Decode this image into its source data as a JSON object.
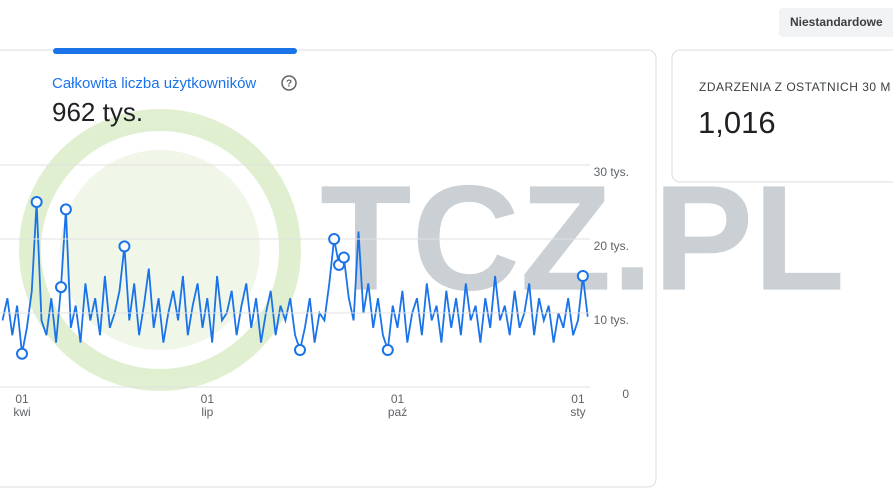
{
  "button": "Niestandardowe",
  "users_card": {
    "label": "Całkowita liczba użytkowników",
    "help": "?",
    "value": "962 tys."
  },
  "events_card": {
    "label": "ZDARZENIA Z OSTATNICH 30 M",
    "value": "1,016"
  },
  "watermark": "TCZ.PL",
  "chart_data": {
    "type": "line",
    "categories": [
      null,
      null,
      null,
      null,
      "01\nkwi",
      null,
      null,
      null,
      null,
      null,
      null,
      null,
      null,
      null,
      null,
      null,
      null,
      null,
      null,
      null,
      null,
      null,
      null,
      null,
      null,
      null,
      null,
      null,
      null,
      null,
      null,
      null,
      null,
      null,
      null,
      null,
      null,
      null,
      null,
      null,
      null,
      null,
      "01\nlip",
      null,
      null,
      null,
      null,
      null,
      null,
      null,
      null,
      null,
      null,
      null,
      null,
      null,
      null,
      null,
      null,
      null,
      null,
      null,
      null,
      null,
      null,
      null,
      null,
      null,
      null,
      null,
      null,
      null,
      null,
      null,
      null,
      null,
      null,
      null,
      null,
      null,
      null,
      "01\npaź",
      null,
      null,
      null,
      null,
      null,
      null,
      null,
      null,
      null,
      null,
      null,
      null,
      null,
      null,
      null,
      null,
      null,
      null,
      null,
      null,
      null,
      null,
      null,
      null,
      null,
      null,
      null,
      null,
      null,
      null,
      null,
      null,
      null,
      null,
      null,
      null,
      "01\nsty",
      null,
      null
    ],
    "series": [
      {
        "color": "#1a73e8",
        "values": [
          9000,
          12000,
          7000,
          11000,
          4500,
          8000,
          13000,
          25000,
          9000,
          7000,
          12000,
          6000,
          13500,
          24000,
          8000,
          11000,
          6000,
          14000,
          9000,
          12000,
          7000,
          15000,
          8000,
          10000,
          13000,
          19000,
          9000,
          14000,
          7000,
          11000,
          16000,
          8000,
          12000,
          6000,
          10000,
          13000,
          9000,
          15000,
          7000,
          11000,
          14000,
          8000,
          12000,
          6000,
          15000,
          9000,
          10000,
          13000,
          7000,
          11000,
          14000,
          8000,
          12000,
          6000,
          10000,
          13000,
          7000,
          11000,
          9000,
          12000,
          7000,
          5000,
          8000,
          12000,
          6000,
          10000,
          9000,
          14000,
          20000,
          16500,
          17500,
          12000,
          9000,
          21000,
          10000,
          14000,
          8000,
          12000,
          7000,
          5000,
          11000,
          8000,
          13000,
          6000,
          10000,
          12000,
          7000,
          14000,
          9000,
          11000,
          6000,
          13000,
          8000,
          12000,
          7000,
          14000,
          9000,
          11000,
          6000,
          12000,
          8000,
          15000,
          9000,
          11000,
          7000,
          13000,
          8000,
          10000,
          14000,
          7000,
          12000,
          9000,
          11000,
          6000,
          10000,
          8000,
          12000,
          7000,
          9000,
          15000,
          9500
        ]
      },
      {
        "color": "#1a73e8",
        "marker": "circle",
        "values": [
          null,
          null,
          null,
          null,
          4500,
          null,
          null,
          25000,
          null,
          null,
          null,
          null,
          13500,
          24000,
          null,
          null,
          null,
          null,
          null,
          null,
          null,
          null,
          null,
          null,
          null,
          19000,
          null,
          null,
          null,
          null,
          null,
          null,
          null,
          null,
          null,
          null,
          null,
          null,
          null,
          null,
          null,
          null,
          null,
          null,
          null,
          null,
          null,
          null,
          null,
          null,
          null,
          null,
          null,
          null,
          null,
          null,
          null,
          null,
          null,
          null,
          null,
          5000,
          null,
          null,
          null,
          null,
          null,
          null,
          20000,
          16500,
          17500,
          null,
          null,
          null,
          null,
          null,
          null,
          null,
          null,
          5000,
          null,
          null,
          null,
          null,
          null,
          null,
          null,
          null,
          null,
          null,
          null,
          null,
          null,
          null,
          null,
          null,
          null,
          null,
          null,
          null,
          null,
          null,
          null,
          null,
          null,
          null,
          null,
          null,
          null,
          null,
          null,
          null,
          null,
          null,
          null,
          null,
          null,
          null,
          null,
          15000,
          null
        ]
      }
    ],
    "ylim": [
      0,
      30000
    ],
    "yticks": [
      {
        "value": 0,
        "label": "0"
      },
      {
        "value": 10000,
        "label": "10 tys."
      },
      {
        "value": 20000,
        "label": "20 tys."
      },
      {
        "value": 30000,
        "label": "30 tys."
      }
    ],
    "grid": true
  }
}
